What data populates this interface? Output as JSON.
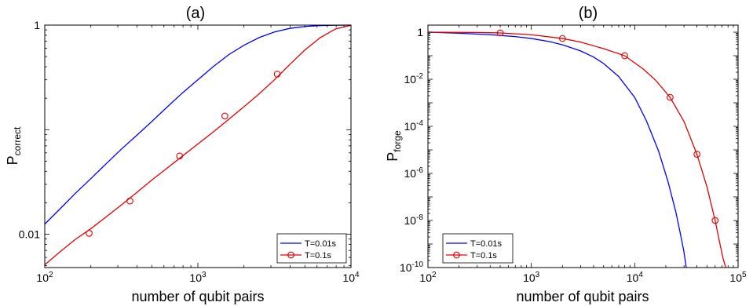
{
  "chart_data": [
    {
      "panel_title": "(a)",
      "type": "line",
      "xlabel": "number of qubit pairs",
      "ylabel": {
        "base": "P",
        "sub": "correct"
      },
      "xscale": "log",
      "yscale": "log",
      "xlim": [
        100,
        10000
      ],
      "ylim": [
        0.0048,
        1
      ],
      "x_ticks": [
        {
          "value": 100,
          "base": "10",
          "exp": "2"
        },
        {
          "value": 1000,
          "base": "10",
          "exp": "3"
        },
        {
          "value": 10000,
          "base": "10",
          "exp": "4"
        }
      ],
      "y_ticks": [
        {
          "value": 0.01,
          "text": "0.01"
        },
        {
          "value": 1,
          "text": "1"
        }
      ],
      "legend": {
        "position": "bottom-right"
      },
      "series": [
        {
          "name": "T=0.01s",
          "color": "#0000ff",
          "marker": "none",
          "x": [
            100,
            126,
            158,
            200,
            251,
            316,
            398,
            501,
            631,
            794,
            1000,
            1259,
            1585,
            1995,
            2512,
            3162,
            3981,
            5012,
            6310,
            7943,
            10000
          ],
          "y": [
            0.0125,
            0.0175,
            0.0245,
            0.034,
            0.047,
            0.065,
            0.088,
            0.12,
            0.165,
            0.225,
            0.3,
            0.4,
            0.52,
            0.64,
            0.76,
            0.86,
            0.93,
            0.97,
            0.99,
            0.998,
            1.0
          ]
        },
        {
          "name": "T=0.1s",
          "color": "#e00000",
          "marker": "circle",
          "x": [
            100,
            126,
            158,
            200,
            251,
            316,
            398,
            501,
            631,
            794,
            1000,
            1259,
            1585,
            1995,
            2512,
            3162,
            3981,
            5012,
            6310,
            7943,
            10000
          ],
          "y": [
            0.0051,
            0.0068,
            0.0089,
            0.0113,
            0.0146,
            0.019,
            0.025,
            0.033,
            0.043,
            0.056,
            0.073,
            0.095,
            0.125,
            0.165,
            0.22,
            0.3,
            0.42,
            0.58,
            0.76,
            0.92,
            0.995
          ],
          "marker_x": [
            195,
            360,
            760,
            1500,
            3300
          ],
          "marker_y": [
            0.0102,
            0.0208,
            0.056,
            0.135,
            0.34
          ]
        }
      ]
    },
    {
      "panel_title": "(b)",
      "type": "line",
      "xlabel": "number of qubit pairs",
      "ylabel": {
        "base": "P",
        "sub": "forge"
      },
      "xscale": "log",
      "yscale": "log",
      "xlim": [
        100,
        100000
      ],
      "ylim": [
        1e-10,
        2
      ],
      "x_ticks": [
        {
          "value": 100,
          "base": "10",
          "exp": "2"
        },
        {
          "value": 1000,
          "base": "10",
          "exp": "3"
        },
        {
          "value": 10000,
          "base": "10",
          "exp": "4"
        },
        {
          "value": 100000,
          "base": "10",
          "exp": "5"
        }
      ],
      "y_ticks": [
        {
          "value": 1,
          "text": "1"
        },
        {
          "value": 0.01,
          "base": "10",
          "exp": "-2"
        },
        {
          "value": 0.0001,
          "base": "10",
          "exp": "-4"
        },
        {
          "value": 1e-06,
          "base": "10",
          "exp": "-6"
        },
        {
          "value": 1e-08,
          "base": "10",
          "exp": "-8"
        },
        {
          "value": 1e-10,
          "base": "10",
          "exp": "-10"
        }
      ],
      "legend": {
        "position": "bottom-left"
      },
      "series": [
        {
          "name": "T=0.01s",
          "color": "#0000ff",
          "marker": "none",
          "x": [
            100,
            200,
            400,
            700,
            1000,
            1500,
            2000,
            3000,
            4000,
            5000,
            7000,
            10000,
            13000,
            17000,
            21000,
            25000,
            28000,
            30000,
            31500
          ],
          "y": [
            1.0,
            0.9,
            0.78,
            0.65,
            0.54,
            0.4,
            0.29,
            0.16,
            0.088,
            0.047,
            0.013,
            0.0017,
            0.00017,
            9e-06,
            4.5e-07,
            2.3e-08,
            2.1e-09,
            4.5e-10,
            1e-10
          ]
        },
        {
          "name": "T=0.1s",
          "color": "#e00000",
          "marker": "circle",
          "x": [
            100,
            300,
            500,
            1000,
            2000,
            3000,
            5000,
            8000,
            12000,
            16000,
            22000,
            30000,
            40000,
            50000,
            60000,
            66000,
            72000,
            76000
          ],
          "y": [
            1.0,
            0.97,
            0.93,
            0.78,
            0.54,
            0.38,
            0.2,
            0.1,
            0.028,
            0.009,
            0.0017,
            0.00016,
            6.5e-06,
            2.7e-07,
            1e-08,
            1.3e-09,
            2.2e-10,
            1e-10
          ],
          "marker_x": [
            500,
            2000,
            8000,
            22000,
            40000,
            60000
          ],
          "marker_y": [
            0.93,
            0.54,
            0.1,
            0.0017,
            6.5e-06,
            1e-08
          ]
        }
      ]
    }
  ]
}
